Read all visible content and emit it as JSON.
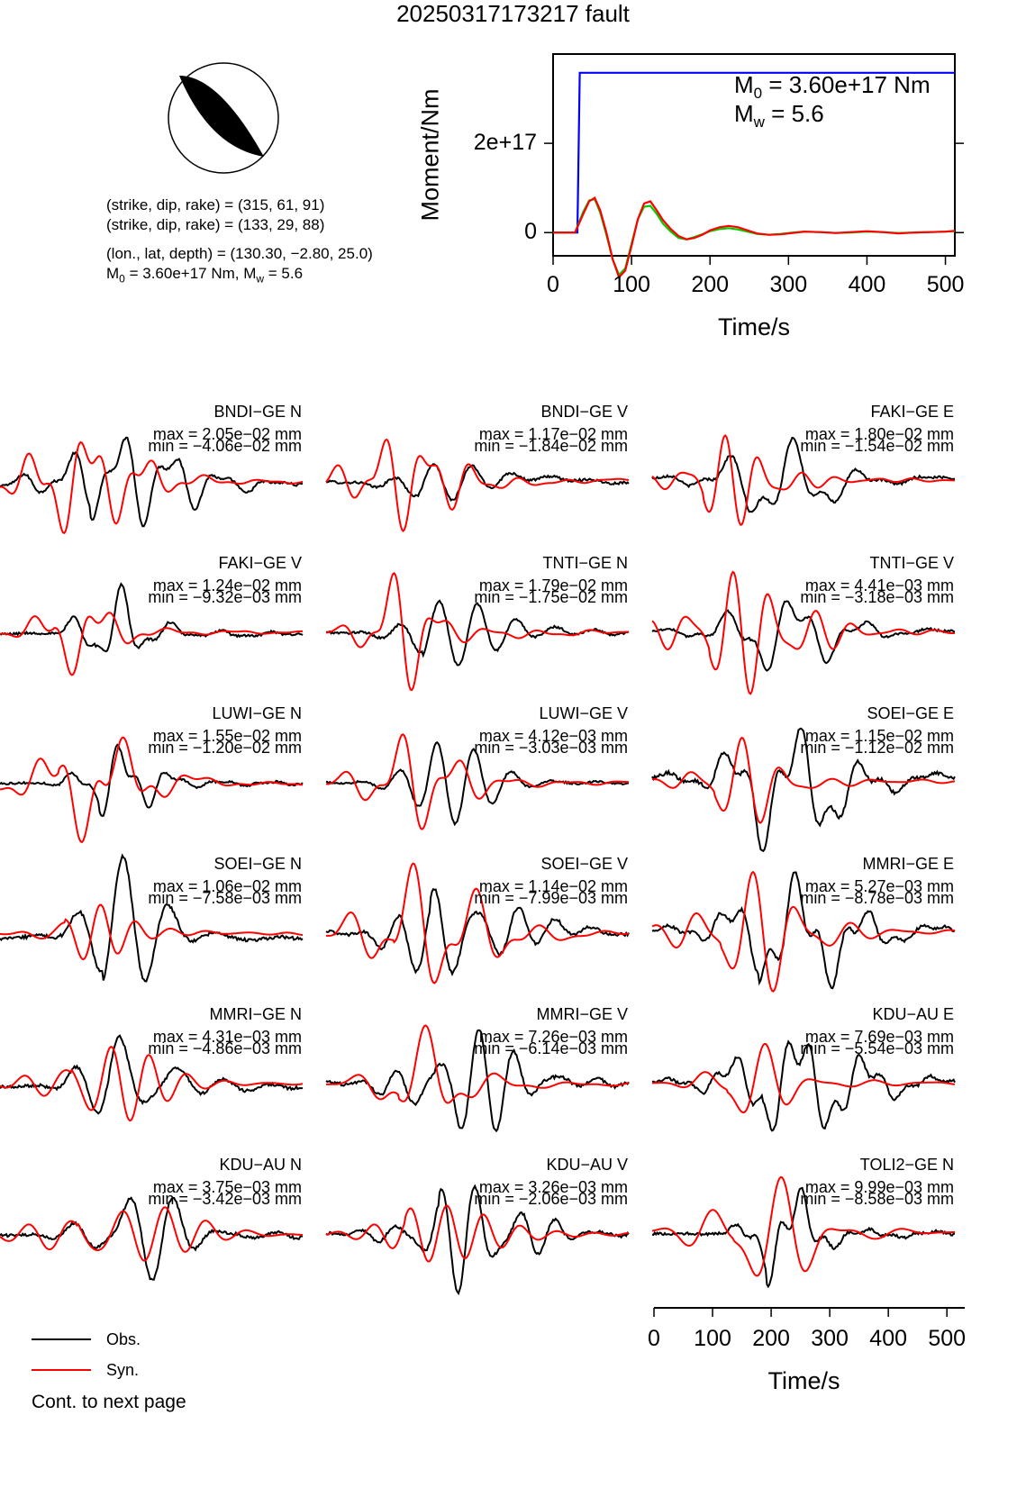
{
  "page": {
    "title": "20250317173217 fault",
    "continue_text": "Cont. to next page"
  },
  "mechanism": {
    "plane1": "(strike, dip, rake) = (315, 61, 91)",
    "plane2": "(strike, dip, rake) = (133, 29, 88)",
    "location": "(lon., lat, depth) = (130.30, −2.80, 25.0)",
    "moment_prefix": "M",
    "moment_sub": "0",
    "moment_mid": " = 3.60e+17 Nm, M",
    "mw_sub": "w",
    "mw_tail": " = 5.6",
    "colors": {
      "beachball": "#000000"
    }
  },
  "chart_data": [
    {
      "type": "line",
      "name": "moment-function",
      "ylabel": "Moment/Nm",
      "xlabel": "Time/s",
      "xlim": [
        0,
        512
      ],
      "ylim": [
        -5.2e+16,
        4e+17
      ],
      "xticks": [
        0,
        100,
        200,
        300,
        400,
        500
      ],
      "xtick_labels": [
        "0",
        "100",
        "200",
        "300",
        "400",
        "500"
      ],
      "yticks": [
        0,
        2e+17
      ],
      "ytick_labels": [
        "0",
        "2e+17"
      ],
      "annotation_m0": {
        "prefix": "M",
        "sub": "0",
        "text": " = 3.60e+17 Nm"
      },
      "annotation_mw": {
        "prefix": "M",
        "sub": "w",
        "text": " = 5.6"
      },
      "series": [
        {
          "color": "#0000ff",
          "x": [
            0,
            31,
            34,
            512
          ],
          "y": [
            0,
            0,
            3.58e+17,
            3.58e+17
          ]
        },
        {
          "color": "#00cc00",
          "x": [
            0,
            28,
            38,
            46,
            53,
            60,
            68,
            76,
            84,
            92,
            100,
            108,
            116,
            124,
            132,
            140,
            150,
            160,
            170,
            180,
            190,
            200,
            212,
            224,
            236,
            248,
            260,
            275,
            290,
            305,
            320,
            340,
            360,
            380,
            400,
            420,
            440,
            460,
            480,
            500,
            512
          ],
          "y": [
            0,
            0,
            4.5e+16,
            7.2e+16,
            7.5e+16,
            4.5e+16,
            -5000000000000000.0,
            -6e+16,
            -9.5e+16,
            -8e+16,
            -2.5e+16,
            3e+16,
            5.8e+16,
            6e+16,
            4.2e+16,
            2e+16,
            2000000000000000.0,
            -1.2e+16,
            -1.5e+16,
            -1e+16,
            -4000000000000000.0,
            3000000000000000.0,
            8000000000000000.0,
            1e+16,
            7000000000000000.0,
            2000000000000000.0,
            -3000000000000000.0,
            -5000000000000000.0,
            -3000000000000000.0,
            0,
            2000000000000000.0,
            1000000000000000.0,
            -1000000000000000.0,
            0,
            2000000000000000.0,
            1000000000000000.0,
            -1000000000000000.0,
            0,
            1000000000000000.0,
            2000000000000000.0,
            3000000000000000.0
          ]
        },
        {
          "color": "#ff0000",
          "x": [
            0,
            28,
            38,
            46,
            53,
            60,
            68,
            76,
            84,
            92,
            100,
            108,
            116,
            124,
            132,
            140,
            150,
            160,
            170,
            180,
            190,
            200,
            212,
            224,
            236,
            248,
            260,
            275,
            290,
            305,
            320,
            340,
            360,
            380,
            400,
            420,
            440,
            460,
            480,
            500,
            512
          ],
          "y": [
            0,
            0,
            4e+16,
            7e+16,
            7.8e+16,
            5e+16,
            0,
            -6e+16,
            -1e+17,
            -8.5e+16,
            -3e+16,
            3e+16,
            6.5e+16,
            7e+16,
            5e+16,
            2.8e+16,
            8000000000000000.0,
            -8000000000000000.0,
            -1.5e+16,
            -1.2e+16,
            -5000000000000000.0,
            5000000000000000.0,
            1.2e+16,
            1.5e+16,
            1.2e+16,
            5000000000000000.0,
            -2000000000000000.0,
            -5000000000000000.0,
            -4000000000000000.0,
            -1000000000000000.0,
            2000000000000000.0,
            1000000000000000.0,
            -1000000000000000.0,
            1000000000000000.0,
            3000000000000000.0,
            1000000000000000.0,
            -2000000000000000.0,
            0,
            1000000000000000.0,
            2000000000000000.0,
            4000000000000000.0
          ]
        }
      ]
    },
    {
      "type": "line",
      "name": "waveforms",
      "xlabel": "Time/s",
      "xlim": [
        0,
        512
      ],
      "xticks": [
        0,
        100,
        200,
        300,
        400,
        500
      ],
      "xtick_labels": [
        "0",
        "100",
        "200",
        "300",
        "400",
        "500"
      ],
      "legend": [
        {
          "label": "Obs.",
          "color": "#000000"
        },
        {
          "label": "Syn.",
          "color": "#ff0000"
        }
      ],
      "stations": [
        {
          "name": "BNDI−GE N",
          "max": "max = 2.05e−02 mm",
          "min": "min = −4.06e−02 mm"
        },
        {
          "name": "BNDI−GE V",
          "max": "max = 1.17e−02 mm",
          "min": "min = −1.84e−02 mm"
        },
        {
          "name": "FAKI−GE E",
          "max": "max = 1.80e−02 mm",
          "min": "min = −1.54e−02 mm"
        },
        {
          "name": "FAKI−GE V",
          "max": "max = 1.24e−02 mm",
          "min": "min = −9.32e−03 mm"
        },
        {
          "name": "TNTI−GE N",
          "max": "max = 1.79e−02 mm",
          "min": "min = −1.75e−02 mm"
        },
        {
          "name": "TNTI−GE V",
          "max": "max = 4.41e−03 mm",
          "min": "min = −3.18e−03 mm"
        },
        {
          "name": "LUWI−GE N",
          "max": "max = 1.55e−02 mm",
          "min": "min = −1.20e−02 mm"
        },
        {
          "name": "LUWI−GE V",
          "max": "max = 4.12e−03 mm",
          "min": "min = −3.03e−03 mm"
        },
        {
          "name": "SOEI−GE E",
          "max": "max = 1.15e−02 mm",
          "min": "min = −1.12e−02 mm"
        },
        {
          "name": "SOEI−GE N",
          "max": "max = 1.06e−02 mm",
          "min": "min = −7.58e−03 mm"
        },
        {
          "name": "SOEI−GE V",
          "max": "max = 1.14e−02 mm",
          "min": "min = −7.99e−03 mm"
        },
        {
          "name": "MMRI−GE E",
          "max": "max = 5.27e−03 mm",
          "min": "min = −8.78e−03 mm"
        },
        {
          "name": "MMRI−GE N",
          "max": "max = 4.31e−03 mm",
          "min": "min = −4.86e−03 mm"
        },
        {
          "name": "MMRI−GE V",
          "max": "max = 7.26e−03 mm",
          "min": "min = −6.14e−03 mm"
        },
        {
          "name": "KDU−AU E",
          "max": "max = 7.69e−03 mm",
          "min": "min = −5.54e−03 mm"
        },
        {
          "name": "KDU−AU N",
          "max": "max = 3.75e−03 mm",
          "min": "min = −3.42e−03 mm"
        },
        {
          "name": "KDU−AU V",
          "max": "max = 3.26e−03 mm",
          "min": "min = −2.06e−03 mm"
        },
        {
          "name": "TOLI2−GE N",
          "max": "max = 9.99e−03 mm",
          "min": "min = −8.58e−03 mm"
        }
      ]
    }
  ]
}
